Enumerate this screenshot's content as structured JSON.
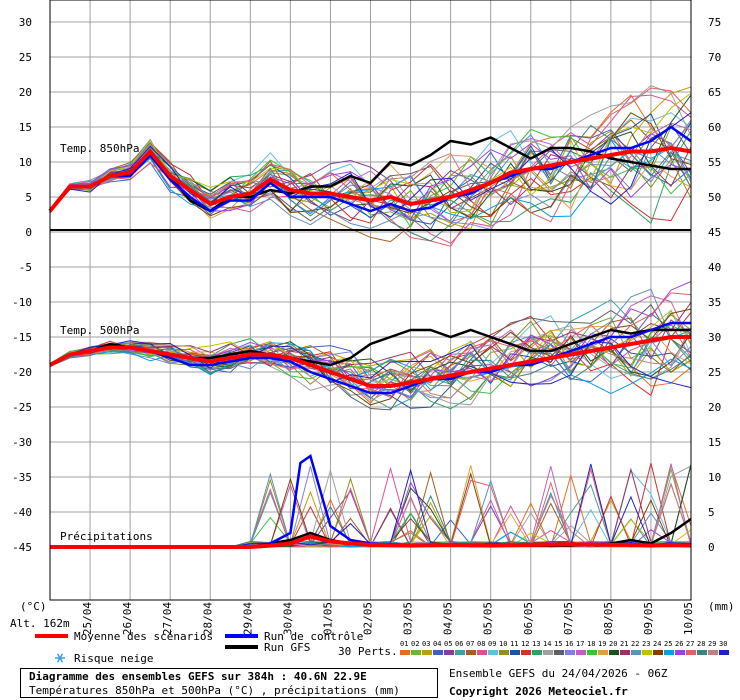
{
  "chart_data": {
    "type": "line",
    "title": "Diagramme des ensembles GEFS sur 384h : 40.6N 22.9E",
    "subtitle": "Températures 850hPa et 500hPa (°C) , précipitations (mm)",
    "run_info": "Ensemble GEFS du 24/04/2026 - 06Z",
    "copyright": "Copyright 2026 Meteociel.fr",
    "altitude": "Alt. 162m",
    "left_axis_unit": "(°C)",
    "right_axis_unit": "(mm)",
    "left_ticks": [
      30,
      25,
      20,
      15,
      10,
      5,
      0,
      -5,
      -10,
      -15,
      -20,
      -25,
      -30,
      -35,
      -40,
      -45
    ],
    "right_ticks": [
      75,
      70,
      65,
      60,
      55,
      50,
      45,
      40,
      35,
      30,
      25,
      20,
      15,
      10,
      5,
      0
    ],
    "x_labels": [
      "25/04",
      "26/04",
      "27/04",
      "28/04",
      "29/04",
      "30/04",
      "01/05",
      "02/05",
      "03/05",
      "04/05",
      "05/05",
      "06/05",
      "07/05",
      "08/05",
      "09/05",
      "10/05"
    ],
    "panel_labels": {
      "t850": "Temp. 850hPa",
      "t500": "Temp. 500hPa",
      "precip": "Précipitations"
    },
    "legend": {
      "mean": "Moyenne des scénarios",
      "control": "Run de contrôle",
      "gfs": "Run GFS",
      "snow": "Risque neige",
      "perts": "30 Perts."
    },
    "member_labels": [
      "01",
      "02",
      "03",
      "04",
      "05",
      "06",
      "07",
      "08",
      "09",
      "10",
      "11",
      "12",
      "13",
      "14",
      "15",
      "16",
      "17",
      "18",
      "19",
      "20",
      "21",
      "22",
      "23",
      "24",
      "25",
      "26",
      "27",
      "28",
      "29",
      "30"
    ],
    "member_colors": [
      "#e07020",
      "#70b040",
      "#c0a000",
      "#4060c0",
      "#8040a0",
      "#40a0a0",
      "#a06020",
      "#e05090",
      "#60c0e0",
      "#909020",
      "#2050a0",
      "#d03030",
      "#30a060",
      "#a0a0a0",
      "#606060",
      "#8080e0",
      "#c060c0",
      "#40c040",
      "#e0a040",
      "#205020",
      "#a03060",
      "#6090c0",
      "#c0c000",
      "#804000",
      "#00a0e0",
      "#a040e0",
      "#e06060",
      "#408080",
      "#c08080",
      "#2020c0"
    ],
    "colors": {
      "mean": "#ff0000",
      "control": "#0000ff",
      "gfs": "#000000",
      "grid": "#a0a0a0"
    },
    "t850": {
      "x_days": [
        0,
        0.5,
        1,
        1.5,
        2,
        2.5,
        3,
        3.5,
        4,
        4.5,
        5,
        5.5,
        6,
        6.5,
        7,
        7.5,
        8,
        8.5,
        9,
        9.5,
        10,
        10.5,
        11,
        11.5,
        12,
        12.5,
        13,
        13.5,
        14,
        14.5,
        15,
        15.5,
        16
      ],
      "mean": [
        3,
        6.5,
        6.5,
        8,
        8.5,
        11.5,
        8,
        6,
        4,
        5,
        5.5,
        7.5,
        6,
        5.5,
        5.5,
        5,
        4.5,
        5,
        4,
        4.5,
        5,
        6,
        7,
        8.5,
        9,
        9.5,
        10,
        10.5,
        11,
        11.5,
        11.5,
        12,
        11.5
      ],
      "control": [
        3,
        6.5,
        6.5,
        8,
        8,
        11,
        7.5,
        5,
        3,
        4.5,
        4.5,
        7,
        5,
        5,
        5,
        4,
        3,
        4,
        3,
        3.5,
        5,
        5.5,
        7,
        8,
        9,
        9,
        10,
        11,
        12,
        12,
        13,
        15,
        13
      ],
      "gfs": [
        3,
        6.5,
        6.5,
        8,
        8,
        11,
        8,
        4.5,
        3,
        5,
        5,
        6,
        5.5,
        6.5,
        6.5,
        8,
        7,
        10,
        9.5,
        11,
        13,
        12.5,
        13.5,
        12,
        10.5,
        12,
        12,
        11.5,
        10.5,
        10,
        9.5,
        9,
        9
      ]
    },
    "t500": {
      "x_days": [
        0,
        0.5,
        1,
        1.5,
        2,
        2.5,
        3,
        3.5,
        4,
        4.5,
        5,
        5.5,
        6,
        6.5,
        7,
        7.5,
        8,
        8.5,
        9,
        9.5,
        10,
        10.5,
        11,
        11.5,
        12,
        12.5,
        13,
        13.5,
        14,
        14.5,
        15,
        15.5,
        16
      ],
      "mean": [
        -19,
        -17.5,
        -17,
        -16.5,
        -16.5,
        -17,
        -17.5,
        -18,
        -18.5,
        -18,
        -17.5,
        -17.5,
        -18,
        -19,
        -20,
        -21,
        -22,
        -22,
        -21.5,
        -21,
        -20.5,
        -20,
        -19.5,
        -19,
        -18.5,
        -18,
        -17.5,
        -17,
        -16.5,
        -16,
        -15.5,
        -15,
        -15
      ],
      "control": [
        -19,
        -17.5,
        -17,
        -16.5,
        -16.5,
        -17,
        -18,
        -19,
        -19,
        -18.5,
        -18,
        -18,
        -18.5,
        -20,
        -21,
        -22,
        -23,
        -23,
        -22,
        -21,
        -21,
        -20,
        -20,
        -19,
        -19,
        -18,
        -17,
        -16,
        -15,
        -15,
        -14,
        -13,
        -13
      ],
      "gfs": [
        -19,
        -17.5,
        -17,
        -16,
        -16.5,
        -17,
        -17.5,
        -18,
        -18,
        -17.5,
        -17,
        -17.5,
        -18,
        -18.5,
        -19,
        -18,
        -16,
        -15,
        -14,
        -14,
        -15,
        -14,
        -15,
        -16,
        -17,
        -17,
        -16,
        -15,
        -14,
        -14.5,
        -14,
        -14,
        -14
      ]
    },
    "precip": {
      "x_days": [
        0,
        1,
        2,
        3,
        4,
        5,
        5.5,
        6,
        6.25,
        6.5,
        7,
        7.5,
        8,
        9,
        10,
        11,
        12,
        13,
        14,
        14.5,
        15,
        15.5,
        16
      ],
      "mean": [
        0,
        0,
        0,
        0,
        0,
        0,
        0.2,
        0.5,
        1,
        1.5,
        0.8,
        0.5,
        0.3,
        0.2,
        0.3,
        0.2,
        0.3,
        0.4,
        0.3,
        0.3,
        0.2,
        0.3,
        0.2
      ],
      "control": [
        0,
        0,
        0,
        0,
        0,
        0,
        0.5,
        2,
        12,
        13,
        3,
        1,
        0.5,
        0.3,
        0.3,
        0.2,
        0.3,
        0.3,
        0.3,
        0.5,
        0.2,
        0.5,
        0.3
      ],
      "gfs": [
        0,
        0,
        0,
        0,
        0,
        0,
        0.5,
        1,
        1.5,
        2,
        1,
        0.5,
        0.3,
        0.2,
        0.2,
        0.2,
        0.2,
        0.2,
        0.5,
        1,
        0.5,
        2,
        4
      ]
    }
  }
}
